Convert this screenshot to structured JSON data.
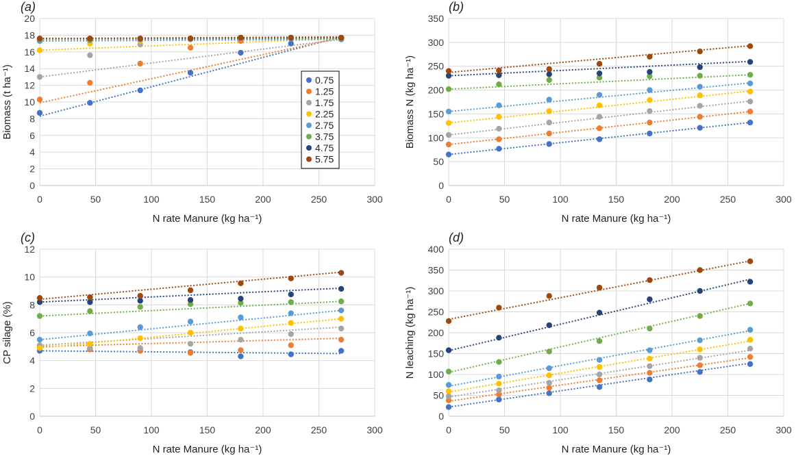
{
  "legend": {
    "panel": 0,
    "entries": [
      "0.75",
      "1.25",
      "1.75",
      "2.25",
      "2.75",
      "3.75",
      "4.75",
      "5.75"
    ]
  },
  "colors": [
    "#4472c4",
    "#ed7d31",
    "#a5a5a5",
    "#ffc000",
    "#5b9bd5",
    "#70ad47",
    "#264478",
    "#9e480e"
  ],
  "chart_data": [
    {
      "type": "scatter",
      "panel_label": "(a)",
      "xlabel": "N rate Manure (kg ha⁻¹)",
      "ylabel": "Biomass (t ha⁻¹)",
      "xlim": [
        0,
        300
      ],
      "ylim": [
        0,
        20
      ],
      "xticks": [
        0,
        50,
        100,
        150,
        200,
        250,
        300
      ],
      "yticks": [
        0,
        2,
        4,
        6,
        8,
        10,
        12,
        14,
        16,
        18,
        20
      ],
      "x": [
        0,
        45,
        90,
        135,
        180,
        225,
        270
      ],
      "series": [
        {
          "name": "0.75",
          "values": [
            8.7,
            9.9,
            11.4,
            13.5,
            15.9,
            17.0,
            17.7
          ],
          "trend": [
            8.3,
            17.8
          ]
        },
        {
          "name": "1.25",
          "values": [
            10.3,
            12.3,
            14.6,
            16.5,
            17.3,
            17.6,
            17.7
          ],
          "trend": [
            9.9,
            17.7
          ]
        },
        {
          "name": "1.75",
          "values": [
            13.0,
            15.6,
            16.9,
            17.5,
            17.6,
            17.6,
            17.5
          ],
          "trend": [
            13.0,
            17.5
          ]
        },
        {
          "name": "2.25",
          "values": [
            16.2,
            17.0,
            17.3,
            17.6,
            17.7,
            17.7,
            17.6
          ],
          "trend": [
            16.2,
            17.6
          ]
        },
        {
          "name": "2.75",
          "values": [
            17.3,
            17.4,
            17.5,
            17.6,
            17.7,
            17.6,
            17.5
          ],
          "trend": [
            17.3,
            17.5
          ]
        },
        {
          "name": "3.75",
          "values": [
            17.5,
            17.5,
            17.6,
            17.6,
            17.7,
            17.7,
            17.6
          ],
          "trend": [
            17.5,
            17.6
          ]
        },
        {
          "name": "4.75",
          "values": [
            17.6,
            17.6,
            17.6,
            17.6,
            17.7,
            17.7,
            17.7
          ],
          "trend": [
            17.6,
            17.7
          ]
        },
        {
          "name": "5.75",
          "values": [
            17.6,
            17.6,
            17.6,
            17.6,
            17.7,
            17.7,
            17.7
          ],
          "trend": [
            17.6,
            17.8
          ]
        }
      ]
    },
    {
      "type": "scatter",
      "panel_label": "(b)",
      "xlabel": "N rate Manure (kg ha⁻¹)",
      "ylabel": "Biomass N (kg ha⁻¹)",
      "xlim": [
        0,
        300
      ],
      "ylim": [
        0,
        350
      ],
      "xticks": [
        0,
        50,
        100,
        150,
        200,
        250,
        300
      ],
      "yticks": [
        0,
        50,
        100,
        150,
        200,
        250,
        300,
        350
      ],
      "x": [
        0,
        45,
        90,
        135,
        180,
        225,
        270
      ],
      "series": [
        {
          "name": "0.75",
          "values": [
            65,
            77,
            87,
            97,
            109,
            121,
            132
          ],
          "trend": [
            65,
            132
          ]
        },
        {
          "name": "1.25",
          "values": [
            86,
            97,
            109,
            120,
            132,
            144,
            155
          ],
          "trend": [
            86,
            155
          ]
        },
        {
          "name": "1.75",
          "values": [
            106,
            119,
            132,
            144,
            156,
            167,
            176
          ],
          "trend": [
            106,
            177
          ]
        },
        {
          "name": "2.25",
          "values": [
            131,
            144,
            156,
            168,
            179,
            189,
            197
          ],
          "trend": [
            131,
            198
          ]
        },
        {
          "name": "2.75",
          "values": [
            155,
            168,
            180,
            190,
            200,
            207,
            214
          ],
          "trend": [
            155,
            215
          ]
        },
        {
          "name": "3.75",
          "values": [
            202,
            212,
            221,
            226,
            229,
            230,
            232
          ],
          "trend": [
            202,
            232
          ]
        },
        {
          "name": "4.75",
          "values": [
            230,
            231,
            233,
            235,
            238,
            248,
            259
          ],
          "trend": [
            230,
            260
          ]
        },
        {
          "name": "5.75",
          "values": [
            240,
            241,
            244,
            255,
            270,
            281,
            292
          ],
          "trend": [
            237,
            293
          ]
        }
      ]
    },
    {
      "type": "scatter",
      "panel_label": "(c)",
      "xlabel": "N rate Manure (kg ha⁻¹)",
      "ylabel": "CP silage (%)",
      "xlim": [
        0,
        300
      ],
      "ylim": [
        0,
        12
      ],
      "xticks": [
        0,
        50,
        100,
        150,
        200,
        250,
        300
      ],
      "yticks": [
        0,
        2,
        4,
        6,
        8,
        10,
        12
      ],
      "x": [
        0,
        45,
        90,
        135,
        180,
        225,
        270
      ],
      "series": [
        {
          "name": "0.75",
          "values": [
            4.7,
            4.8,
            4.7,
            4.6,
            4.3,
            4.45,
            4.7
          ],
          "trend": [
            4.7,
            4.5
          ]
        },
        {
          "name": "1.25",
          "values": [
            5.0,
            4.8,
            4.7,
            4.55,
            4.75,
            5.1,
            5.5
          ],
          "trend": [
            5.0,
            5.6
          ]
        },
        {
          "name": "1.75",
          "values": [
            5.1,
            4.9,
            4.9,
            5.2,
            5.5,
            5.9,
            6.3
          ],
          "trend": [
            5.1,
            6.4
          ]
        },
        {
          "name": "2.25",
          "values": [
            4.9,
            5.2,
            5.6,
            6.0,
            6.3,
            6.7,
            7.0
          ],
          "trend": [
            4.9,
            7.0
          ]
        },
        {
          "name": "2.75",
          "values": [
            5.5,
            5.95,
            6.4,
            6.8,
            7.1,
            7.4,
            7.6
          ],
          "trend": [
            5.5,
            7.6
          ]
        },
        {
          "name": "3.75",
          "values": [
            7.2,
            7.55,
            7.85,
            8.05,
            8.15,
            8.2,
            8.25
          ],
          "trend": [
            7.2,
            8.25
          ]
        },
        {
          "name": "4.75",
          "values": [
            8.2,
            8.2,
            8.3,
            8.35,
            8.45,
            8.75,
            9.15
          ],
          "trend": [
            8.2,
            9.2
          ]
        },
        {
          "name": "5.75",
          "values": [
            8.5,
            8.55,
            8.65,
            9.05,
            9.55,
            9.9,
            10.3
          ],
          "trend": [
            8.4,
            10.35
          ]
        }
      ]
    },
    {
      "type": "scatter",
      "panel_label": "(d)",
      "xlabel": "N rate Manure (kg ha⁻¹)",
      "ylabel": "N leaching (kg ha⁻¹)",
      "xlim": [
        0,
        300
      ],
      "ylim": [
        0,
        400
      ],
      "xticks": [
        0,
        50,
        100,
        150,
        200,
        250,
        300
      ],
      "yticks": [
        0,
        50,
        100,
        150,
        200,
        250,
        300,
        350,
        400
      ],
      "x": [
        0,
        45,
        90,
        135,
        180,
        225,
        270
      ],
      "series": [
        {
          "name": "0.75",
          "values": [
            22,
            40,
            55,
            70,
            88,
            106,
            125
          ],
          "trend": [
            22,
            127
          ]
        },
        {
          "name": "1.25",
          "values": [
            38,
            52,
            68,
            86,
            104,
            122,
            142
          ],
          "trend": [
            36,
            140
          ]
        },
        {
          "name": "1.75",
          "values": [
            48,
            62,
            80,
            100,
            120,
            140,
            162
          ],
          "trend": [
            46,
            158
          ]
        },
        {
          "name": "2.25",
          "values": [
            60,
            78,
            98,
            118,
            138,
            160,
            183
          ],
          "trend": [
            58,
            180
          ]
        },
        {
          "name": "2.75",
          "values": [
            75,
            95,
            115,
            135,
            158,
            182,
            207
          ],
          "trend": [
            72,
            205
          ]
        },
        {
          "name": "3.75",
          "values": [
            107,
            130,
            155,
            180,
            210,
            240,
            270
          ],
          "trend": [
            105,
            270
          ]
        },
        {
          "name": "4.75",
          "values": [
            158,
            188,
            218,
            248,
            280,
            300,
            322
          ],
          "trend": [
            157,
            328
          ]
        },
        {
          "name": "5.75",
          "values": [
            228,
            260,
            288,
            308,
            326,
            350,
            371
          ],
          "trend": [
            232,
            372
          ]
        }
      ]
    }
  ]
}
